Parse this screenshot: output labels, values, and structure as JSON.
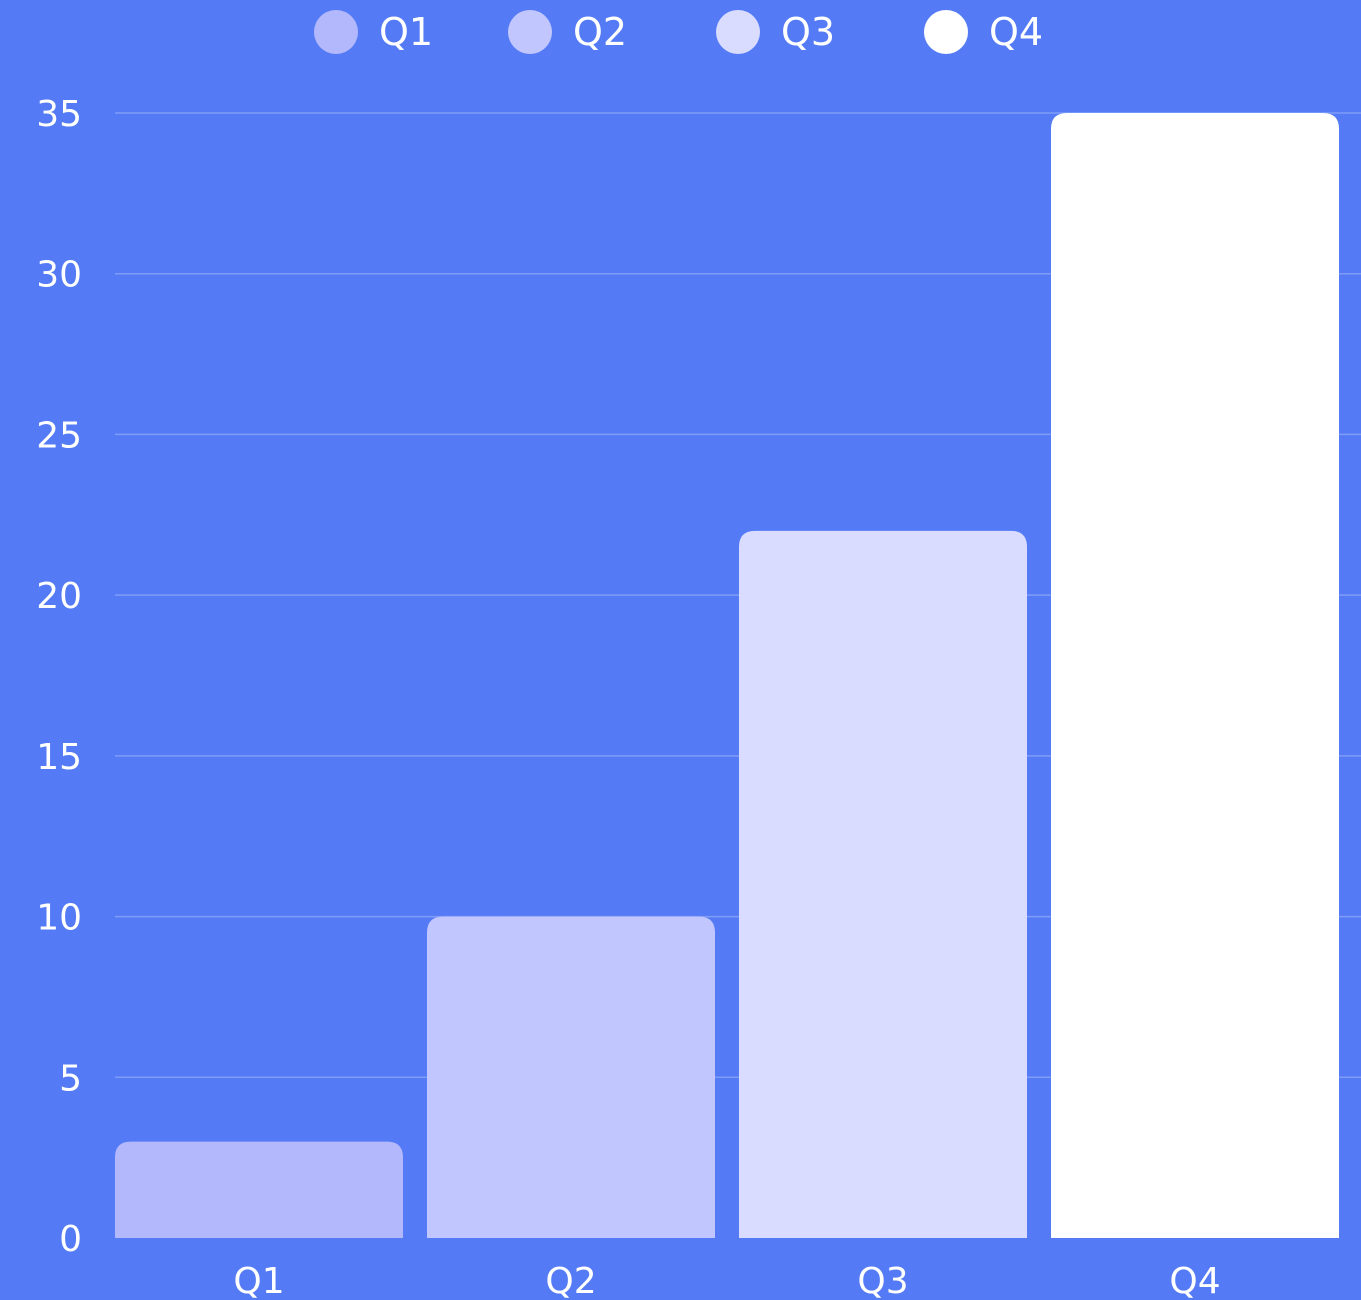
{
  "chart_data": {
    "type": "bar",
    "categories": [
      "Q1",
      "Q2",
      "Q3",
      "Q4"
    ],
    "values": [
      3,
      10,
      22,
      35
    ],
    "ylim": [
      0,
      35
    ],
    "yticks": [
      "0",
      "5",
      "10",
      "15",
      "20",
      "25",
      "30",
      "35"
    ],
    "grid": true,
    "legend": {
      "position": "top",
      "entries": [
        "Q1",
        "Q2",
        "Q3",
        "Q4"
      ]
    },
    "colors": {
      "background": "#547bf5",
      "bars": [
        "#b3b8fd",
        "#c1c6ff",
        "#dadcff",
        "#ffffff"
      ],
      "gridline": "#7f9df8",
      "text": "#ffffff"
    }
  }
}
